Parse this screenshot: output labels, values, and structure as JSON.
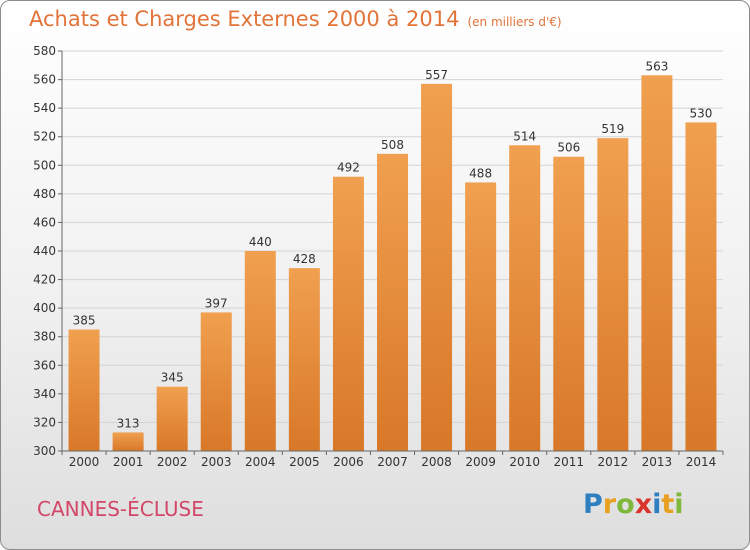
{
  "header": {
    "title": "Achats et Charges Externes 2000 à 2014",
    "subtitle": "(en milliers d'€)"
  },
  "footer": {
    "commune": "CANNES-ÉCLUSE",
    "logo_letters": [
      "P",
      "r",
      "o",
      "x",
      "i",
      "t",
      "i"
    ],
    "logo_colors": [
      "#2e7fc0",
      "#e8a020",
      "#7fb83a",
      "#d9342b",
      "#2e7fc0",
      "#e8a020",
      "#7fb83a"
    ]
  },
  "chart_data": {
    "type": "bar",
    "title": "Achats et Charges Externes 2000 à 2014",
    "subtitle": "(en milliers d'€)",
    "categories": [
      "2000",
      "2001",
      "2002",
      "2003",
      "2004",
      "2005",
      "2006",
      "2007",
      "2008",
      "2009",
      "2010",
      "2011",
      "2012",
      "2013",
      "2014"
    ],
    "values": [
      385,
      313,
      345,
      397,
      440,
      428,
      492,
      508,
      557,
      488,
      514,
      506,
      519,
      563,
      530
    ],
    "ylim": [
      300,
      580
    ],
    "yticks": [
      300,
      320,
      340,
      360,
      380,
      400,
      420,
      440,
      460,
      480,
      500,
      520,
      540,
      560,
      580
    ],
    "grid": true,
    "bar_color": "#f0a050",
    "bar_color_dark": "#d87828"
  }
}
